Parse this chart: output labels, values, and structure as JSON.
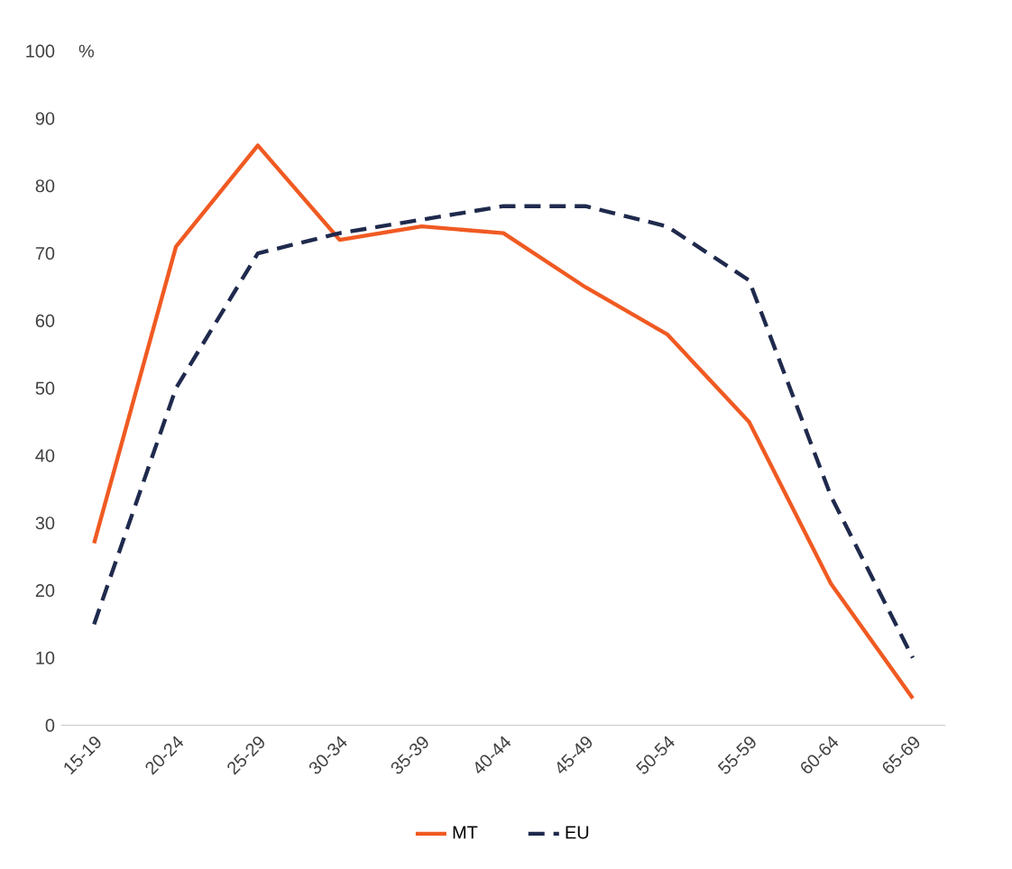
{
  "chart_data": {
    "type": "line",
    "ylabel": "%",
    "categories": [
      "15-19",
      "20-24",
      "25-29",
      "30-34",
      "35-39",
      "40-44",
      "45-49",
      "50-54",
      "55-59",
      "60-64",
      "65-69"
    ],
    "series": [
      {
        "name": "MT",
        "color": "#f05a22",
        "line_style": "solid",
        "values": [
          27,
          71,
          86,
          72,
          74,
          73,
          65,
          58,
          45,
          21,
          4
        ]
      },
      {
        "name": "EU",
        "color": "#1f2a4d",
        "line_style": "dashed",
        "values": [
          15,
          50,
          70,
          73,
          75,
          77,
          77,
          74,
          66,
          34,
          10
        ]
      }
    ],
    "ylim": [
      0,
      100
    ],
    "yticks": [
      0,
      10,
      20,
      30,
      40,
      50,
      60,
      70,
      80,
      90,
      100
    ],
    "grid": false,
    "legend": "bottom",
    "marker": "none"
  }
}
